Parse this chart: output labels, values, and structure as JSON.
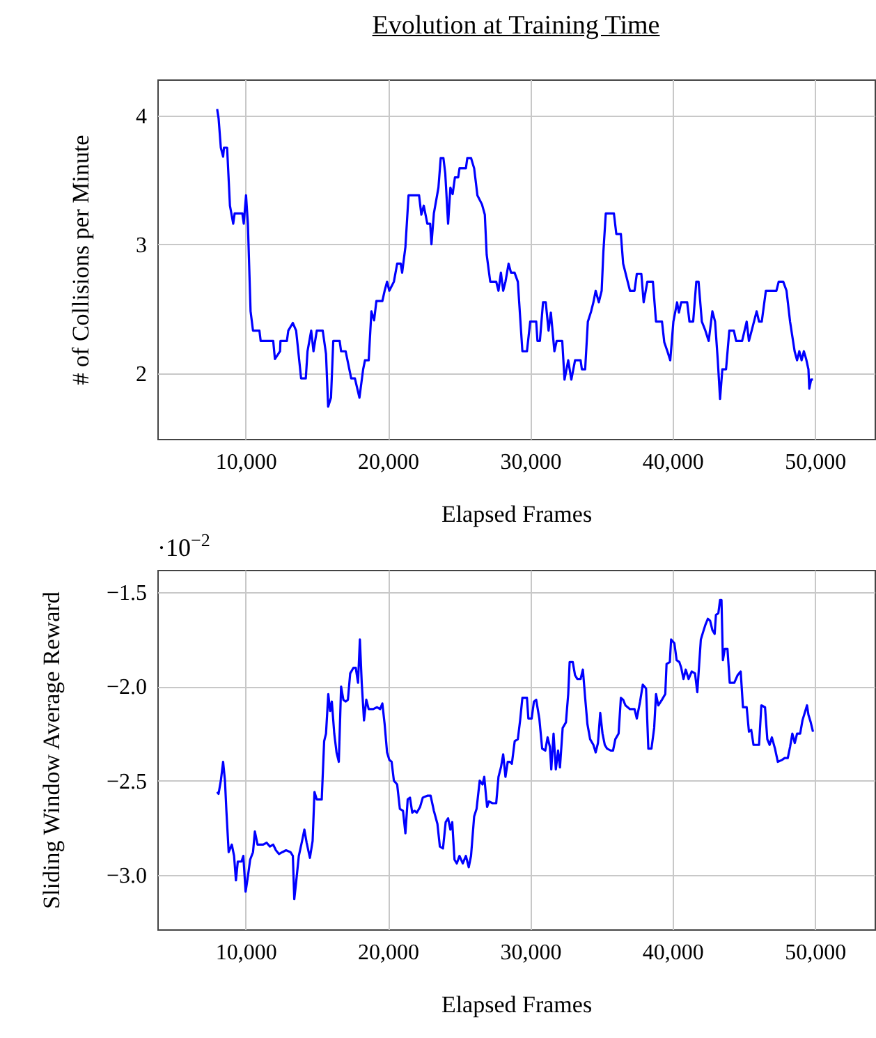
{
  "chart_data": [
    {
      "type": "line",
      "title": "Evolution at Training Time",
      "xlabel": "Elapsed Frames",
      "ylabel": "# of Collisions per Minute",
      "color": "#0000ff",
      "grid": true,
      "xlim": [
        3800,
        54200
      ],
      "ylim": [
        1.49,
        4.28
      ],
      "xticks": [
        {
          "value": 10000,
          "label": "10,000"
        },
        {
          "value": 20000,
          "label": "20,000"
        },
        {
          "value": 30000,
          "label": "30,000"
        },
        {
          "value": 40000,
          "label": "40,000"
        },
        {
          "value": 50000,
          "label": "50,000"
        }
      ],
      "yticks": [
        2,
        3,
        4
      ],
      "x": [
        8000,
        8100,
        8260,
        8420,
        8480,
        8700,
        8900,
        9130,
        9230,
        9770,
        9870,
        10030,
        10160,
        10350,
        10520,
        10970,
        11060,
        11940,
        12060,
        12420,
        12450,
        12900,
        13000,
        13320,
        13550,
        13900,
        14230,
        14350,
        14610,
        14770,
        15000,
        15420,
        15650,
        15800,
        16000,
        16160,
        16610,
        16710,
        17030,
        17420,
        17680,
        18000,
        18260,
        18390,
        18650,
        18840,
        19030,
        19190,
        19610,
        19770,
        19940,
        20100,
        20420,
        20650,
        20900,
        21000,
        21230,
        21450,
        22190,
        22350,
        22520,
        22770,
        22970,
        23060,
        23230,
        23550,
        23710,
        23900,
        24030,
        24230,
        24390,
        24550,
        24710,
        24940,
        25030,
        25480,
        25580,
        25840,
        26060,
        26290,
        26610,
        26810,
        26940,
        27190,
        27610,
        27770,
        27940,
        28100,
        28260,
        28480,
        28650,
        28900,
        29130,
        29450,
        29770,
        30000,
        30420,
        30510,
        30680,
        30900,
        31090,
        31290,
        31450,
        31700,
        31860,
        32250,
        32410,
        32670,
        32890,
        33150,
        33540,
        33630,
        33860,
        34050,
        34280,
        34440,
        34600,
        34820,
        35020,
        35140,
        35310,
        35880,
        36050,
        36370,
        36530,
        36850,
        37010,
        37330,
        37490,
        37810,
        37970,
        38230,
        38620,
        38840,
        39260,
        39420,
        39640,
        39840,
        40060,
        40320,
        40450,
        40610,
        41030,
        41190,
        41450,
        41670,
        41830,
        42060,
        42310,
        42540,
        42800,
        42990,
        43180,
        43340,
        43500,
        43760,
        43990,
        44310,
        44470,
        44890,
        45210,
        45370,
        45560,
        45910,
        46080,
        46270,
        46560,
        47300,
        47460,
        47780,
        48010,
        48260,
        48580,
        48750,
        48910,
        49070,
        49230,
        49390,
        49550,
        49610,
        49740,
        49870
      ],
      "values": [
        4.05,
        3.98,
        3.75,
        3.68,
        3.75,
        3.75,
        3.3,
        3.16,
        3.24,
        3.24,
        3.16,
        3.38,
        3.16,
        2.48,
        2.33,
        2.33,
        2.25,
        2.25,
        2.11,
        2.17,
        2.25,
        2.25,
        2.33,
        2.39,
        2.33,
        1.96,
        1.96,
        2.17,
        2.33,
        2.17,
        2.33,
        2.33,
        2.15,
        1.74,
        1.81,
        2.25,
        2.25,
        2.17,
        2.17,
        1.96,
        1.96,
        1.81,
        2.03,
        2.1,
        2.1,
        2.48,
        2.41,
        2.56,
        2.56,
        2.64,
        2.71,
        2.64,
        2.71,
        2.85,
        2.85,
        2.78,
        2.98,
        3.38,
        3.38,
        3.23,
        3.3,
        3.16,
        3.16,
        3.0,
        3.24,
        3.44,
        3.67,
        3.67,
        3.55,
        3.16,
        3.44,
        3.39,
        3.52,
        3.52,
        3.59,
        3.59,
        3.67,
        3.67,
        3.59,
        3.38,
        3.31,
        3.23,
        2.92,
        2.71,
        2.71,
        2.64,
        2.78,
        2.64,
        2.71,
        2.85,
        2.78,
        2.78,
        2.71,
        2.17,
        2.17,
        2.4,
        2.4,
        2.25,
        2.25,
        2.55,
        2.55,
        2.33,
        2.47,
        2.17,
        2.25,
        2.25,
        1.95,
        2.1,
        1.95,
        2.1,
        2.1,
        2.03,
        2.03,
        2.4,
        2.48,
        2.55,
        2.64,
        2.55,
        2.64,
        2.94,
        3.24,
        3.24,
        3.08,
        3.08,
        2.85,
        2.71,
        2.64,
        2.64,
        2.77,
        2.77,
        2.55,
        2.71,
        2.71,
        2.4,
        2.4,
        2.24,
        2.17,
        2.1,
        2.4,
        2.55,
        2.47,
        2.55,
        2.55,
        2.4,
        2.4,
        2.71,
        2.71,
        2.4,
        2.33,
        2.25,
        2.48,
        2.4,
        2.1,
        1.8,
        2.03,
        2.03,
        2.33,
        2.33,
        2.25,
        2.25,
        2.4,
        2.25,
        2.33,
        2.48,
        2.4,
        2.4,
        2.64,
        2.64,
        2.71,
        2.71,
        2.64,
        2.4,
        2.17,
        2.1,
        2.17,
        2.1,
        2.17,
        2.11,
        2.03,
        1.88,
        1.95,
        1.95
      ]
    },
    {
      "type": "line",
      "xlabel": "Elapsed Frames",
      "ylabel": "Sliding Window Average Reward",
      "color": "#0000ff",
      "grid": true,
      "annotations": [
        "·10$^{−2}$"
      ],
      "xlim": [
        3800,
        54200
      ],
      "ylim": [
        -3.29,
        -1.38
      ],
      "xticks": [
        {
          "value": 10000,
          "label": "10,000"
        },
        {
          "value": 20000,
          "label": "20,000"
        },
        {
          "value": 30000,
          "label": "30,000"
        },
        {
          "value": 40000,
          "label": "40,000"
        },
        {
          "value": 50000,
          "label": "50,000"
        }
      ],
      "yticks": [
        {
          "value": -1.5,
          "label": "−1.5"
        },
        {
          "value": -2,
          "label": "−2.0"
        },
        {
          "value": -2.5,
          "label": "−2.5"
        },
        {
          "value": -3,
          "label": "−3.0"
        }
      ],
      "x": [
        8000,
        8100,
        8260,
        8420,
        8550,
        8650,
        8810,
        9030,
        9190,
        9320,
        9450,
        9710,
        9840,
        10000,
        10160,
        10320,
        10520,
        10650,
        10840,
        11230,
        11480,
        11710,
        11940,
        12130,
        12350,
        12580,
        12840,
        13160,
        13320,
        13420,
        13550,
        13740,
        13970,
        14130,
        14290,
        14520,
        14710,
        14840,
        15000,
        15350,
        15520,
        15650,
        15810,
        15940,
        16060,
        16230,
        16390,
        16550,
        16710,
        16870,
        17030,
        17190,
        17350,
        17580,
        17740,
        17900,
        18030,
        18160,
        18320,
        18480,
        18650,
        18970,
        19230,
        19450,
        19610,
        19770,
        19940,
        20100,
        20260,
        20420,
        20650,
        20840,
        21060,
        21230,
        21390,
        21550,
        21710,
        21870,
        22030,
        22260,
        22450,
        22770,
        23000,
        23230,
        23480,
        23650,
        23870,
        24060,
        24230,
        24390,
        24520,
        24680,
        24840,
        25030,
        25260,
        25480,
        25680,
        25840,
        26060,
        26230,
        26450,
        26650,
        26770,
        26970,
        27100,
        27350,
        27610,
        27770,
        27940,
        28100,
        28260,
        28420,
        28580,
        28710,
        28910,
        29130,
        29290,
        29450,
        29770,
        29870,
        30100,
        30260,
        30420,
        30640,
        30840,
        31060,
        31220,
        31380,
        31480,
        31640,
        31800,
        31960,
        32090,
        32280,
        32510,
        32670,
        32770,
        32990,
        33150,
        33310,
        33540,
        33700,
        33860,
        34020,
        34210,
        34440,
        34600,
        34760,
        34920,
        35080,
        35240,
        35400,
        35660,
        35820,
        35980,
        36210,
        36370,
        36530,
        36690,
        37010,
        37330,
        37490,
        37720,
        37910,
        38140,
        38300,
        38520,
        38710,
        38840,
        39000,
        39260,
        39490,
        39580,
        39810,
        39900,
        40130,
        40290,
        40480,
        40610,
        40770,
        40930,
        41130,
        41350,
        41580,
        41740,
        41830,
        41990,
        42150,
        42320,
        42480,
        42640,
        42800,
        42960,
        43050,
        43220,
        43340,
        43440,
        43540,
        43670,
        43860,
        44020,
        44340,
        44570,
        44790,
        44950,
        45210,
        45370,
        45530,
        45690,
        45920,
        46080,
        46240,
        46500,
        46660,
        46820,
        46980,
        47200,
        47400,
        47690,
        47880,
        48100,
        48260,
        48420,
        48590,
        48750,
        48970,
        49130,
        49290,
        49450,
        49550,
        49710,
        49870
      ],
      "values": [
        -2.56,
        -2.57,
        -2.5,
        -2.4,
        -2.5,
        -2.66,
        -2.88,
        -2.84,
        -2.9,
        -3.03,
        -2.93,
        -2.93,
        -2.9,
        -3.09,
        -3.01,
        -2.92,
        -2.88,
        -2.77,
        -2.84,
        -2.84,
        -2.83,
        -2.85,
        -2.84,
        -2.87,
        -2.89,
        -2.88,
        -2.87,
        -2.88,
        -2.9,
        -3.13,
        -3.04,
        -2.9,
        -2.82,
        -2.76,
        -2.83,
        -2.91,
        -2.82,
        -2.56,
        -2.6,
        -2.6,
        -2.29,
        -2.25,
        -2.04,
        -2.13,
        -2.08,
        -2.25,
        -2.35,
        -2.4,
        -2.0,
        -2.07,
        -2.08,
        -2.07,
        -1.93,
        -1.9,
        -1.9,
        -1.98,
        -1.75,
        -1.98,
        -2.18,
        -2.07,
        -2.12,
        -2.12,
        -2.11,
        -2.12,
        -2.09,
        -2.2,
        -2.35,
        -2.39,
        -2.4,
        -2.5,
        -2.52,
        -2.65,
        -2.66,
        -2.78,
        -2.6,
        -2.59,
        -2.67,
        -2.66,
        -2.67,
        -2.64,
        -2.59,
        -2.58,
        -2.58,
        -2.66,
        -2.73,
        -2.85,
        -2.86,
        -2.72,
        -2.7,
        -2.76,
        -2.72,
        -2.92,
        -2.94,
        -2.9,
        -2.94,
        -2.9,
        -2.96,
        -2.9,
        -2.69,
        -2.65,
        -2.5,
        -2.52,
        -2.48,
        -2.64,
        -2.61,
        -2.62,
        -2.62,
        -2.48,
        -2.43,
        -2.36,
        -2.48,
        -2.4,
        -2.4,
        -2.41,
        -2.29,
        -2.28,
        -2.18,
        -2.06,
        -2.06,
        -2.17,
        -2.17,
        -2.08,
        -2.07,
        -2.17,
        -2.33,
        -2.34,
        -2.27,
        -2.32,
        -2.44,
        -2.25,
        -2.44,
        -2.34,
        -2.43,
        -2.22,
        -2.19,
        -2.04,
        -1.87,
        -1.87,
        -1.94,
        -1.96,
        -1.96,
        -1.91,
        -2.06,
        -2.2,
        -2.28,
        -2.31,
        -2.35,
        -2.3,
        -2.14,
        -2.25,
        -2.31,
        -2.33,
        -2.34,
        -2.34,
        -2.28,
        -2.25,
        -2.06,
        -2.07,
        -2.1,
        -2.12,
        -2.12,
        -2.17,
        -2.08,
        -1.99,
        -2.01,
        -2.33,
        -2.33,
        -2.22,
        -2.04,
        -2.1,
        -2.07,
        -2.04,
        -1.88,
        -1.87,
        -1.75,
        -1.77,
        -1.86,
        -1.87,
        -1.9,
        -1.96,
        -1.91,
        -1.96,
        -1.92,
        -1.93,
        -2.03,
        -1.93,
        -1.75,
        -1.71,
        -1.67,
        -1.64,
        -1.65,
        -1.7,
        -1.72,
        -1.62,
        -1.61,
        -1.54,
        -1.54,
        -1.86,
        -1.8,
        -1.8,
        -1.98,
        -1.98,
        -1.94,
        -1.92,
        -2.11,
        -2.11,
        -2.24,
        -2.23,
        -2.31,
        -2.31,
        -2.31,
        -2.1,
        -2.11,
        -2.28,
        -2.31,
        -2.27,
        -2.33,
        -2.4,
        -2.39,
        -2.38,
        -2.38,
        -2.32,
        -2.25,
        -2.3,
        -2.25,
        -2.25,
        -2.18,
        -2.14,
        -2.1,
        -2.15,
        -2.19,
        -2.24
      ]
    }
  ]
}
